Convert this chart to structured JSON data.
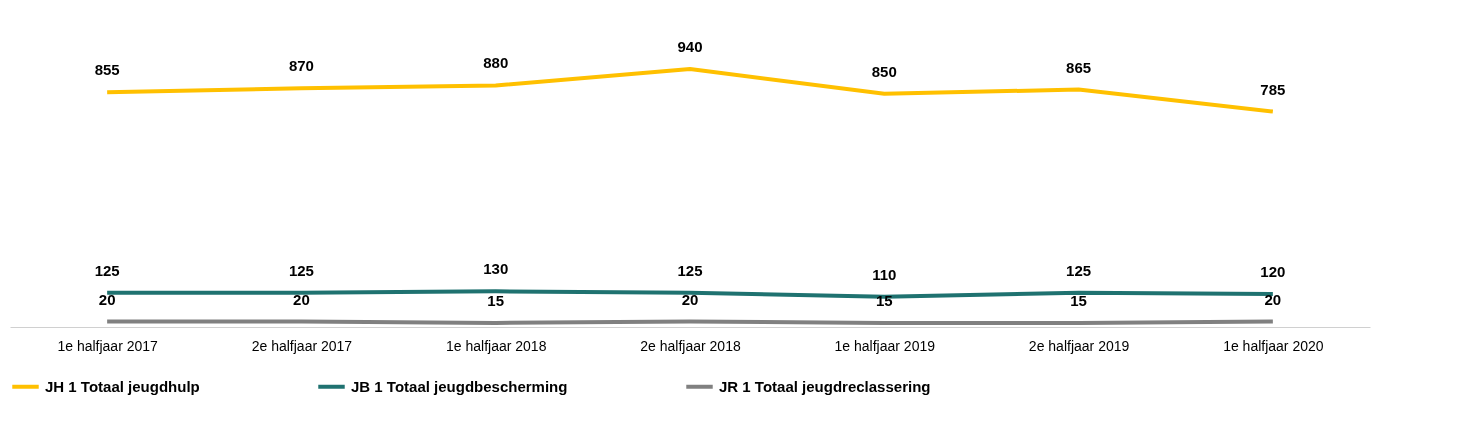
{
  "chart_data": {
    "type": "line",
    "categories": [
      "1e halfjaar 2017",
      "2e halfjaar 2017",
      "1e halfjaar 2018",
      "2e halfjaar 2018",
      "1e halfjaar 2019",
      "2e halfjaar 2019",
      "1e halfjaar 2020"
    ],
    "series": [
      {
        "name": "JH 1 Totaal jeugdhulp",
        "color": "#ffc000",
        "values": [
          855,
          870,
          880,
          940,
          850,
          865,
          785
        ]
      },
      {
        "name": "JB 1 Totaal jeugdbescherming",
        "color": "#1f7270",
        "values": [
          125,
          125,
          130,
          125,
          110,
          125,
          120
        ]
      },
      {
        "name": "JR 1 Totaal jeugdreclassering",
        "color": "#808080",
        "values": [
          20,
          20,
          15,
          20,
          15,
          15,
          20
        ]
      }
    ],
    "data_labels": true,
    "legend": "bottom",
    "grid": false,
    "line_style": "solid",
    "tick_labels": "x"
  }
}
